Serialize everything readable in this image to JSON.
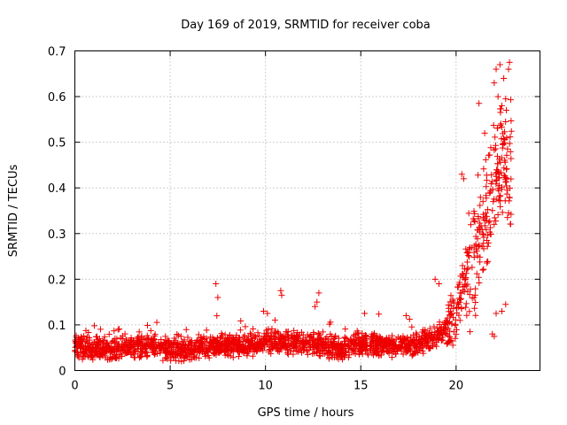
{
  "chart_data": {
    "type": "scatter",
    "title": "Day 169 of 2019, SRMTID for receiver coba",
    "xlabel": "GPS time / hours",
    "ylabel": "SRMTID / TECUs",
    "xlim": [
      0,
      24.4
    ],
    "ylim": [
      0,
      0.7
    ],
    "xticks": [
      "0",
      "5",
      "10",
      "15",
      "20"
    ],
    "xtick_values": [
      0,
      5,
      10,
      15,
      20
    ],
    "yticks": [
      "0",
      "0.1",
      "0.2",
      "0.3",
      "0.4",
      "0.5",
      "0.6",
      "0.7"
    ],
    "ytick_values": [
      0,
      0.1,
      0.2,
      0.3,
      0.4,
      0.5,
      0.6,
      0.7
    ],
    "grid": true,
    "marker": "+",
    "color": "#ee0000",
    "profile": [
      [
        0,
        0.05
      ],
      [
        1,
        0.05
      ],
      [
        2,
        0.045
      ],
      [
        3,
        0.05
      ],
      [
        4,
        0.055
      ],
      [
        5,
        0.045
      ],
      [
        6,
        0.045
      ],
      [
        7,
        0.05
      ],
      [
        8,
        0.055
      ],
      [
        9,
        0.055
      ],
      [
        10,
        0.065
      ],
      [
        11,
        0.06
      ],
      [
        12,
        0.06
      ],
      [
        13,
        0.055
      ],
      [
        14,
        0.05
      ],
      [
        15,
        0.06
      ],
      [
        16,
        0.055
      ],
      [
        17,
        0.055
      ],
      [
        18,
        0.06
      ],
      [
        19,
        0.075
      ],
      [
        19.5,
        0.095
      ],
      [
        20,
        0.13
      ],
      [
        20.5,
        0.2
      ],
      [
        21,
        0.26
      ],
      [
        21.5,
        0.34
      ],
      [
        22,
        0.4
      ],
      [
        22.5,
        0.45
      ],
      [
        22.9,
        0.45
      ]
    ],
    "spikes": [
      [
        7.4,
        0.19
      ],
      [
        7.5,
        0.16
      ],
      [
        7.45,
        0.12
      ],
      [
        9.9,
        0.13
      ],
      [
        10.1,
        0.125
      ],
      [
        10.8,
        0.175
      ],
      [
        10.85,
        0.165
      ],
      [
        12.8,
        0.17
      ],
      [
        12.7,
        0.15
      ],
      [
        12.6,
        0.14
      ],
      [
        15.2,
        0.125
      ],
      [
        18.9,
        0.2
      ],
      [
        19.1,
        0.19
      ],
      [
        20.3,
        0.43
      ],
      [
        20.4,
        0.42
      ],
      [
        22.0,
        0.63
      ],
      [
        22.1,
        0.66
      ],
      [
        22.3,
        0.67
      ],
      [
        22.8,
        0.675
      ],
      [
        22.75,
        0.66
      ],
      [
        22.5,
        0.64
      ],
      [
        22.2,
        0.6
      ],
      [
        22.6,
        0.595
      ],
      [
        21.2,
        0.585
      ],
      [
        21.5,
        0.52
      ],
      [
        22.4,
        0.58
      ],
      [
        21.9,
        0.08
      ],
      [
        22.0,
        0.075
      ],
      [
        22.1,
        0.125
      ],
      [
        22.6,
        0.145
      ],
      [
        22.4,
        0.13
      ],
      [
        21.4,
        0.22
      ],
      [
        21.0,
        0.165
      ]
    ],
    "point_count": 2100
  }
}
